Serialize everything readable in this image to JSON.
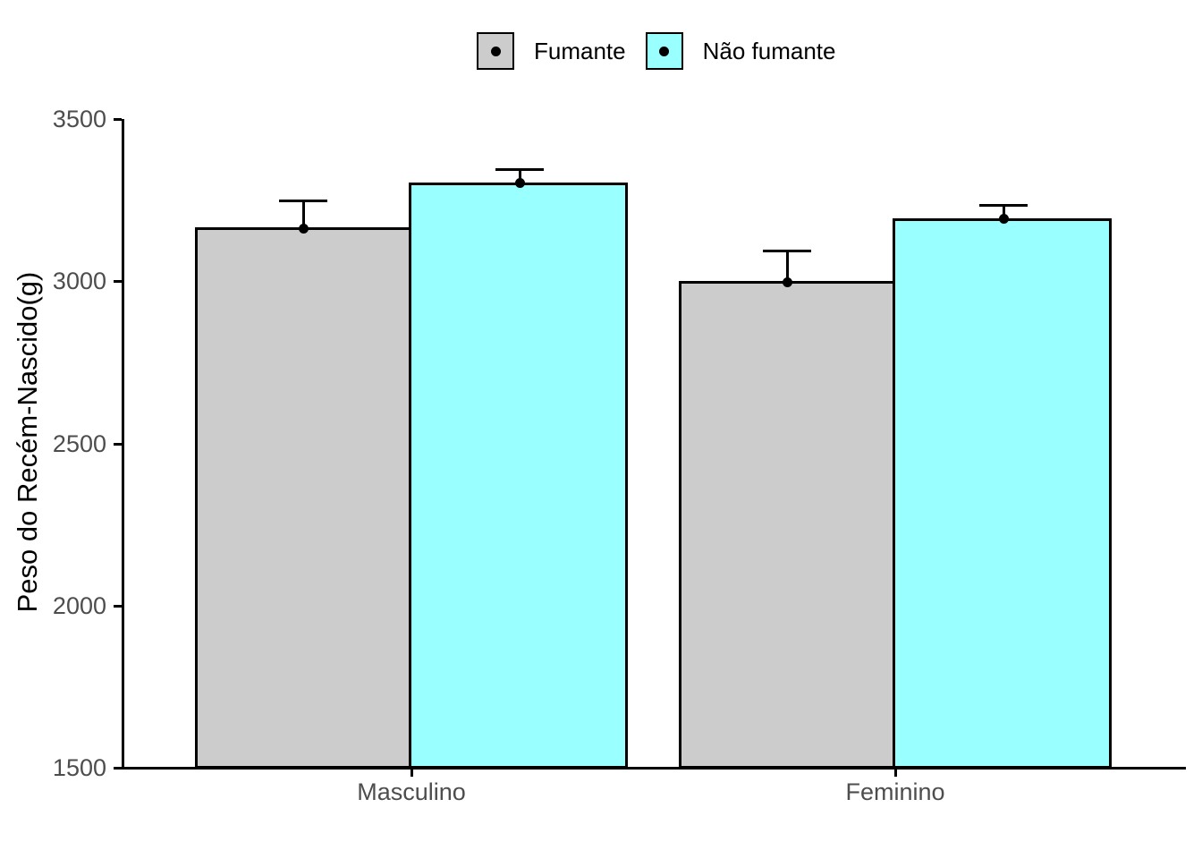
{
  "legend": {
    "items": [
      {
        "label": "Fumante",
        "color": "#CCCCCC"
      },
      {
        "label": "Não fumante",
        "color": "#99FFFF"
      }
    ]
  },
  "axes": {
    "y_title": "Peso do Recém-Nascido(g)",
    "y_tick_labels": [
      "1500",
      "2000",
      "2500",
      "3000",
      "3500"
    ],
    "x_tick_labels": [
      "Masculino",
      "Feminino"
    ]
  },
  "chart_data": {
    "type": "bar",
    "categories": [
      "Masculino",
      "Feminino"
    ],
    "series": [
      {
        "name": "Fumante",
        "fill": "#CCCCCC",
        "values": [
          3165,
          3000
        ],
        "error_upper": [
          3250,
          3095
        ]
      },
      {
        "name": "Não fumante",
        "fill": "#99FFFF",
        "values": [
          3305,
          3195
        ],
        "error_upper": [
          3345,
          3235
        ]
      }
    ],
    "title": "",
    "xlabel": "",
    "ylabel": "Peso do Recém-Nascido(g)",
    "ylim": [
      1500,
      3500
    ],
    "y_ticks": [
      1500,
      2000,
      2500,
      3000,
      3500
    ],
    "grid": false,
    "legend_position": "top-center",
    "marker": "black mean point with upper SE whisker",
    "colors": {
      "axis_text": "#4D4D4D",
      "axis_line": "#000000",
      "bar_border": "#000000",
      "error_bar": "#000000",
      "point": "#000000",
      "background": "#FFFFFF"
    }
  }
}
